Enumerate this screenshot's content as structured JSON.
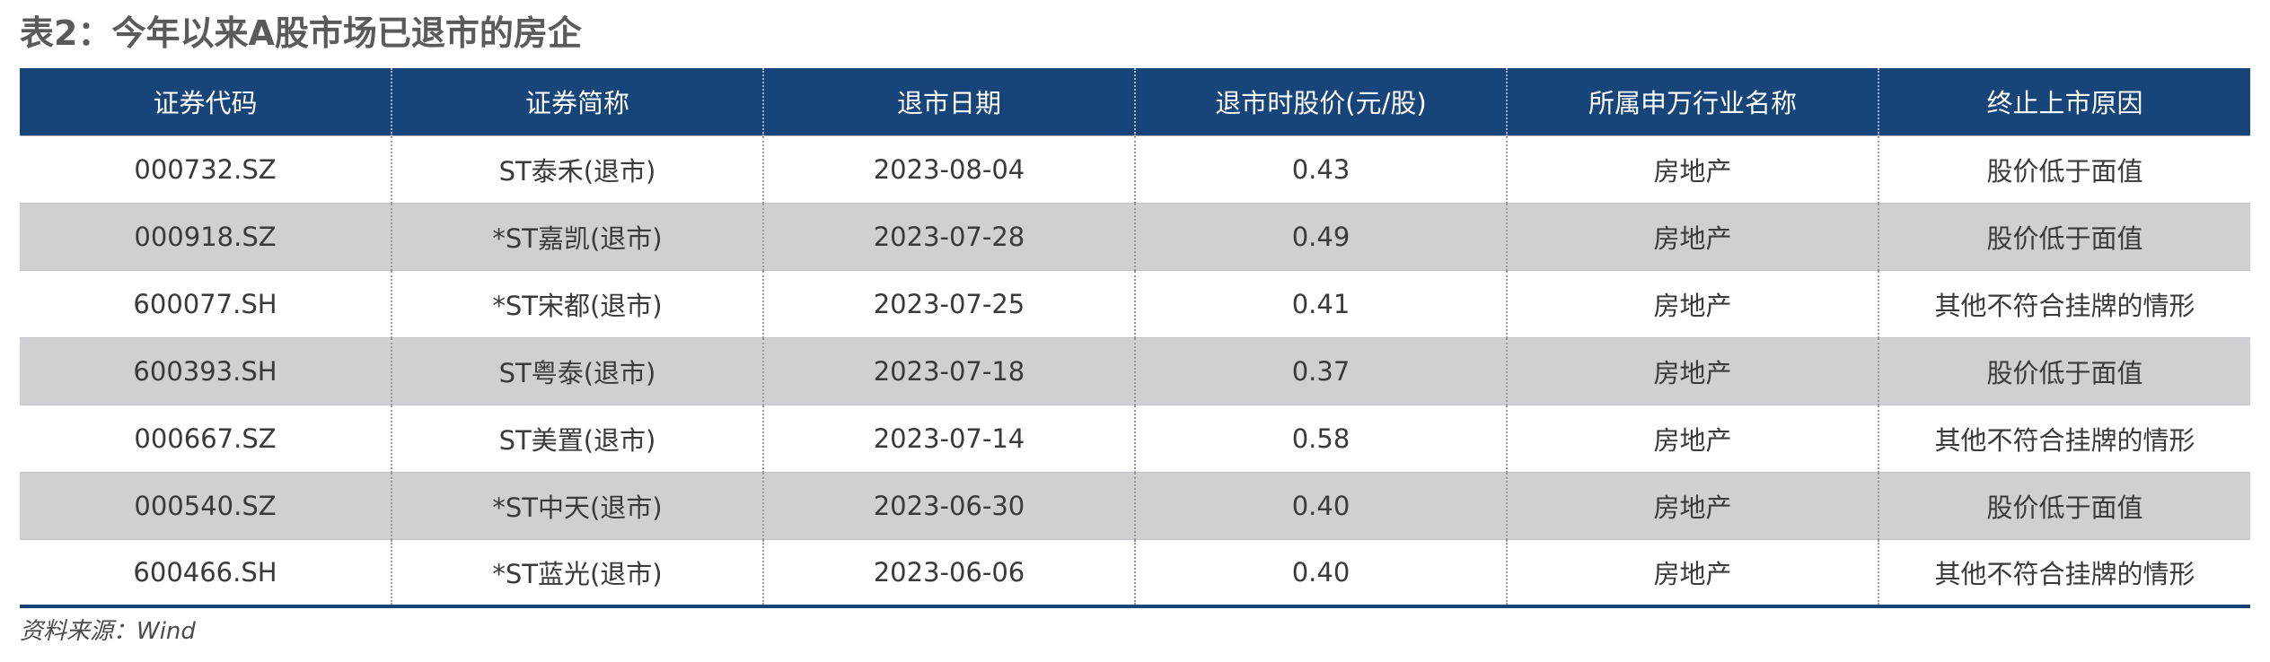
{
  "title": "表2：今年以来A股市场已退市的房企",
  "table": {
    "headers": [
      "证券代码",
      "证券简称",
      "退市日期",
      "退市时股价(元/股)",
      "所属申万行业名称",
      "终止上市原因"
    ],
    "rows": [
      [
        "000732.SZ",
        "ST泰禾(退市)",
        "2023-08-04",
        "0.43",
        "房地产",
        "股价低于面值"
      ],
      [
        "000918.SZ",
        "*ST嘉凯(退市)",
        "2023-07-28",
        "0.49",
        "房地产",
        "股价低于面值"
      ],
      [
        "600077.SH",
        "*ST宋都(退市)",
        "2023-07-25",
        "0.41",
        "房地产",
        "其他不符合挂牌的情形"
      ],
      [
        "600393.SH",
        "ST粤泰(退市)",
        "2023-07-18",
        "0.37",
        "房地产",
        "股价低于面值"
      ],
      [
        "000667.SZ",
        "ST美置(退市)",
        "2023-07-14",
        "0.58",
        "房地产",
        "其他不符合挂牌的情形"
      ],
      [
        "000540.SZ",
        "*ST中天(退市)",
        "2023-06-30",
        "0.40",
        "房地产",
        "股价低于面值"
      ],
      [
        "600466.SH",
        "*ST蓝光(退市)",
        "2023-06-06",
        "0.40",
        "房地产",
        "其他不符合挂牌的情形"
      ]
    ]
  },
  "source": "资料来源：Wind",
  "colors": {
    "header_bg": "#17457a",
    "stripe": "#d0d0d3",
    "title": "#5a5a5a"
  }
}
